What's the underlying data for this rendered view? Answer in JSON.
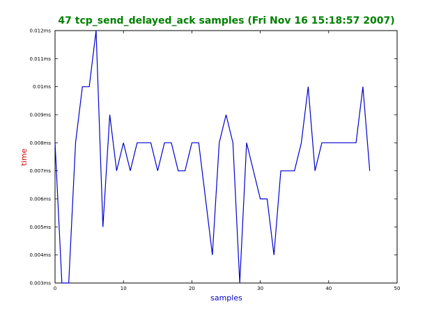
{
  "chart_data": {
    "type": "line",
    "title": "47 tcp_send_delayed_ack samples (Fri Nov 16 15:18:57 2007)",
    "xlabel": "samples",
    "ylabel": "time",
    "xlim": [
      0,
      50
    ],
    "ylim": [
      0.003,
      0.012
    ],
    "x_ticks": [
      "0",
      "10",
      "20",
      "30",
      "40",
      "50"
    ],
    "y_ticks": [
      "0.003ms",
      "0.004ms",
      "0.005ms",
      "0.006ms",
      "0.007ms",
      "0.008ms",
      "0.009ms",
      "0.01ms",
      "0.011ms",
      "0.012ms"
    ],
    "grid": false,
    "legend": "none",
    "series": [
      {
        "values": [
          0.008,
          0.003,
          0.003,
          0.008,
          0.01,
          0.01,
          0.012,
          0.005,
          0.009,
          0.007,
          0.008,
          0.007,
          0.008,
          0.008,
          0.008,
          0.007,
          0.008,
          0.008,
          0.007,
          0.007,
          0.008,
          0.008,
          0.006,
          0.004,
          0.008,
          0.009,
          0.008,
          0.003,
          0.008,
          0.007,
          0.006,
          0.006,
          0.004,
          0.007,
          0.007,
          0.007,
          0.008,
          0.01,
          0.007,
          0.008,
          0.008,
          0.008,
          0.008,
          0.008,
          0.008,
          0.01,
          0.007
        ]
      }
    ],
    "colors": {
      "title": "#008000",
      "xlabel": "#0000cc",
      "ylabel": "#cc0000",
      "line": "#0000cc",
      "frame": "#000000"
    }
  }
}
